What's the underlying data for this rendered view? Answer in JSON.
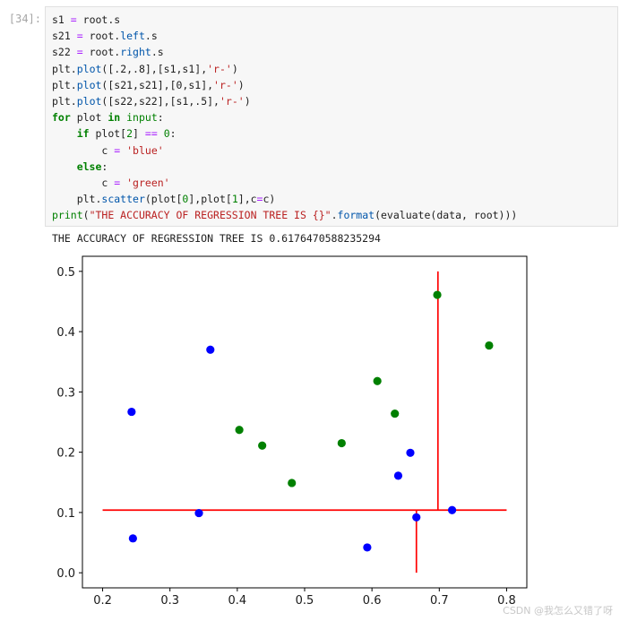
{
  "cell": {
    "prompt": "[34]:",
    "code_lines": [
      [
        [
          "s1",
          "v"
        ],
        [
          " = ",
          "op"
        ],
        [
          "root",
          "v"
        ],
        [
          ".",
          "v"
        ],
        [
          "s",
          "v"
        ]
      ],
      [
        [
          "s21",
          "v"
        ],
        [
          " = ",
          "op"
        ],
        [
          "root",
          "v"
        ],
        [
          ".",
          "v"
        ],
        [
          "left",
          "attr"
        ],
        [
          ".",
          "v"
        ],
        [
          "s",
          "v"
        ]
      ],
      [
        [
          "s22",
          "v"
        ],
        [
          " = ",
          "op"
        ],
        [
          "root",
          "v"
        ],
        [
          ".",
          "v"
        ],
        [
          "right",
          "attr"
        ],
        [
          ".",
          "v"
        ],
        [
          "s",
          "v"
        ]
      ],
      [
        [
          "plt",
          "v"
        ],
        [
          ".",
          "v"
        ],
        [
          "plot",
          "attr"
        ],
        [
          "([.2,.8],[s1,s1],",
          "v"
        ],
        [
          "'r-'",
          "str"
        ],
        [
          ")",
          "v"
        ]
      ],
      [
        [
          "plt",
          "v"
        ],
        [
          ".",
          "v"
        ],
        [
          "plot",
          "attr"
        ],
        [
          "([s21,s21],[0,s1],",
          "v"
        ],
        [
          "'r-'",
          "str"
        ],
        [
          ")",
          "v"
        ]
      ],
      [
        [
          "plt",
          "v"
        ],
        [
          ".",
          "v"
        ],
        [
          "plot",
          "attr"
        ],
        [
          "([s22,s22],[s1,.5],",
          "v"
        ],
        [
          "'r-'",
          "str"
        ],
        [
          ")",
          "v"
        ]
      ],
      [
        [
          "for",
          "kw"
        ],
        [
          " plot ",
          "v"
        ],
        [
          "in",
          "kw"
        ],
        [
          " ",
          "v"
        ],
        [
          "input",
          "bi"
        ],
        [
          ":",
          "v"
        ]
      ],
      [
        [
          "    ",
          "v"
        ],
        [
          "if",
          "kw"
        ],
        [
          " plot[",
          "v"
        ],
        [
          "2",
          "num"
        ],
        [
          "] ",
          "v"
        ],
        [
          "==",
          "op"
        ],
        [
          " ",
          "v"
        ],
        [
          "0",
          "num"
        ],
        [
          ":",
          "v"
        ]
      ],
      [
        [
          "        c ",
          "v"
        ],
        [
          "=",
          "op"
        ],
        [
          " ",
          "v"
        ],
        [
          "'blue'",
          "str"
        ]
      ],
      [
        [
          "    ",
          "v"
        ],
        [
          "else",
          "kw"
        ],
        [
          ":",
          "v"
        ]
      ],
      [
        [
          "        c ",
          "v"
        ],
        [
          "=",
          "op"
        ],
        [
          " ",
          "v"
        ],
        [
          "'green'",
          "str"
        ]
      ],
      [
        [
          "    plt",
          "v"
        ],
        [
          ".",
          "v"
        ],
        [
          "scatter",
          "attr"
        ],
        [
          "(plot[",
          "v"
        ],
        [
          "0",
          "num"
        ],
        [
          "],plot[",
          "v"
        ],
        [
          "1",
          "num"
        ],
        [
          "],c",
          "v"
        ],
        [
          "=",
          "op"
        ],
        [
          "c)",
          "v"
        ]
      ],
      [
        [
          "print",
          "bi"
        ],
        [
          "(",
          "v"
        ],
        [
          "\"THE ACCURACY OF REGRESSION TREE IS {}\"",
          "str"
        ],
        [
          ".",
          "v"
        ],
        [
          "format",
          "attr"
        ],
        [
          "(evaluate(data, root)))",
          "v"
        ]
      ]
    ],
    "output": "THE ACCURACY OF REGRESSION TREE IS 0.6176470588235294"
  },
  "colors": {
    "kw": "#008000",
    "str": "#ba2121",
    "num": "#008000",
    "attr": "#0055aa",
    "op": "#aa22ff",
    "bi": "#008000",
    "v": "#202020",
    "blue_points": "#0000ff",
    "green_points": "#008000",
    "split_lines": "#ff0000"
  },
  "chart_data": {
    "type": "scatter",
    "xlim": [
      0.17,
      0.83
    ],
    "ylim": [
      -0.025,
      0.525
    ],
    "xticks": [
      0.2,
      0.3,
      0.4,
      0.5,
      0.6,
      0.7,
      0.8
    ],
    "xtick_labels": [
      "0.2",
      "0.3",
      "0.4",
      "0.5",
      "0.6",
      "0.7",
      "0.8"
    ],
    "yticks": [
      0.0,
      0.1,
      0.2,
      0.3,
      0.4,
      0.5
    ],
    "ytick_labels": [
      "0.0",
      "0.1",
      "0.2",
      "0.3",
      "0.4",
      "0.5"
    ],
    "grid": false,
    "series": [
      {
        "color": "blue",
        "points": [
          [
            0.243,
            0.267
          ],
          [
            0.245,
            0.057
          ],
          [
            0.343,
            0.099
          ],
          [
            0.36,
            0.37
          ],
          [
            0.593,
            0.042
          ],
          [
            0.639,
            0.161
          ],
          [
            0.657,
            0.199
          ],
          [
            0.666,
            0.092
          ],
          [
            0.719,
            0.104
          ]
        ]
      },
      {
        "color": "green",
        "points": [
          [
            0.403,
            0.237
          ],
          [
            0.437,
            0.211
          ],
          [
            0.481,
            0.149
          ],
          [
            0.555,
            0.215
          ],
          [
            0.608,
            0.318
          ],
          [
            0.634,
            0.264
          ],
          [
            0.697,
            0.461
          ],
          [
            0.774,
            0.377
          ]
        ]
      }
    ],
    "lines": [
      {
        "color": "red",
        "x": [
          0.2,
          0.8
        ],
        "y": [
          0.104,
          0.104
        ]
      },
      {
        "color": "red",
        "x": [
          0.666,
          0.666
        ],
        "y": [
          0.0,
          0.104
        ]
      },
      {
        "color": "red",
        "x": [
          0.698,
          0.698
        ],
        "y": [
          0.104,
          0.5
        ]
      }
    ]
  },
  "watermark": "CSDN @我怎么又错了呀"
}
